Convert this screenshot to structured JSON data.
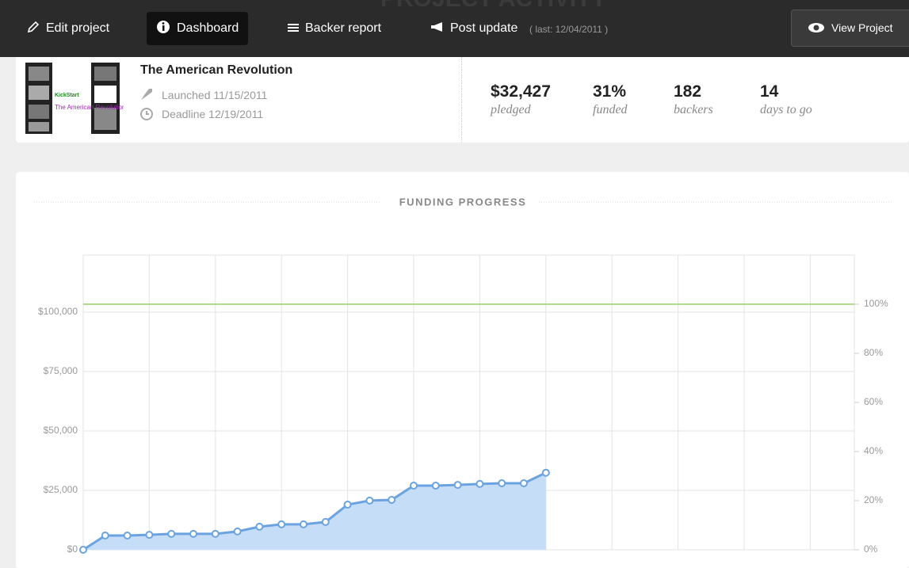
{
  "nav": {
    "items": [
      "Edit project",
      "Dashboard",
      "Backer report",
      "Post update"
    ],
    "last_update": "( last: 12/04/2011 )",
    "view_button": "View Project",
    "page_heading": "PROJECT ACTIVITY"
  },
  "project": {
    "title": "The American Revolution",
    "launched": "Launched 11/15/2011",
    "deadline": "Deadline 12/19/2011",
    "thumbnail_brand": "KickStart",
    "thumbnail_title": "The American Revolution"
  },
  "stats": [
    {
      "value": "$32,427",
      "label": "pledged"
    },
    {
      "value": "31%",
      "label": "funded"
    },
    {
      "value": "182",
      "label": "backers"
    },
    {
      "value": "14",
      "label": "days to go"
    }
  ],
  "chart_data": {
    "type": "area",
    "title": "FUNDING PROGRESS",
    "x": [
      0,
      1,
      2,
      3,
      4,
      5,
      6,
      7,
      8,
      9,
      10,
      11,
      12,
      13,
      14,
      15,
      16,
      17,
      18,
      19,
      20,
      21
    ],
    "series": [
      {
        "color": "#6ba3e0",
        "fill": "#c5ddf7",
        "values": [
          0,
          6000,
          6000,
          6300,
          6700,
          6700,
          6700,
          7700,
          9700,
          10700,
          10700,
          11700,
          19000,
          20700,
          21000,
          27000,
          27000,
          27300,
          27700,
          28000,
          28000,
          32427
        ]
      }
    ],
    "xlim": [
      0,
      35
    ],
    "xticks": [
      0,
      3,
      6,
      9,
      12,
      15,
      18,
      21,
      24,
      27,
      30,
      33
    ],
    "ylim": [
      0,
      124000
    ],
    "yticks": [
      {
        "value": 0,
        "label": "$0"
      },
      {
        "value": 25000,
        "label": "$25,000"
      },
      {
        "value": 50000,
        "label": "$50,000"
      },
      {
        "value": 75000,
        "label": "$75,000"
      },
      {
        "value": 100000,
        "label": "$100,000"
      }
    ],
    "y2lim": [
      0,
      120
    ],
    "y2ticks": [
      {
        "value": 0,
        "label": "0%"
      },
      {
        "value": 20,
        "label": "20%"
      },
      {
        "value": 40,
        "label": "40%"
      },
      {
        "value": 60,
        "label": "60%"
      },
      {
        "value": 80,
        "label": "80%"
      },
      {
        "value": 100,
        "label": "100%"
      }
    ],
    "goal_line": {
      "value": 100,
      "axis": "y2",
      "color": "#8fd16a"
    },
    "grid": true
  }
}
